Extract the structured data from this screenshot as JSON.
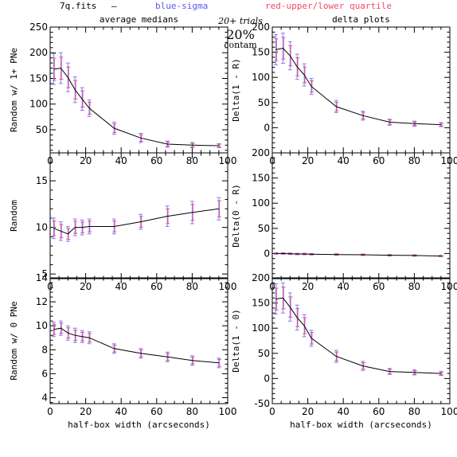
{
  "header": {
    "file": "7q.fits",
    "dash": "—",
    "blue": "blue-sigma",
    "red": "red-upper/lower quartile",
    "trials": "20+ trials",
    "contam_pct": "20%",
    "contam_label": "contam",
    "blue_color": "#5a5af0",
    "red_color": "#f04a6a"
  },
  "colors": {
    "line": "#000000",
    "blue_err": "#7f7fff",
    "red_err": "#e0508a"
  },
  "chart_data": [
    {
      "id": "p1",
      "type": "line",
      "col": 0,
      "row": 0,
      "title": "average medians",
      "ylabel": "Random w/ 1+ PNe",
      "xlabel": "",
      "xlim": [
        0,
        100
      ],
      "ylim": [
        5,
        250
      ],
      "yticks": [
        50,
        100,
        150,
        200,
        250
      ],
      "x": [
        2,
        6,
        10,
        14,
        18,
        22,
        36,
        51,
        66,
        80,
        95
      ],
      "y": [
        168,
        170,
        152,
        128,
        110,
        92,
        53,
        34,
        22,
        20,
        19
      ],
      "err": [
        30,
        30,
        28,
        25,
        22,
        16,
        12,
        9,
        6,
        5,
        4
      ]
    },
    {
      "id": "p2",
      "type": "line",
      "col": 1,
      "row": 0,
      "title": "delta plots",
      "ylabel": "Delta(1 - R)",
      "xlabel": "",
      "xlim": [
        0,
        100
      ],
      "ylim": [
        -50,
        200
      ],
      "yticks": [
        0,
        50,
        100,
        150,
        200
      ],
      "x": [
        2,
        6,
        10,
        14,
        18,
        22,
        36,
        51,
        66,
        80,
        95
      ],
      "y": [
        155,
        158,
        143,
        121,
        105,
        82,
        42,
        24,
        11,
        8,
        6
      ],
      "err": [
        30,
        30,
        28,
        25,
        22,
        16,
        12,
        9,
        6,
        5,
        4
      ]
    },
    {
      "id": "p3",
      "type": "line",
      "col": 0,
      "row": 1,
      "title": "",
      "ylabel": "Random",
      "xlabel": "",
      "xlim": [
        0,
        100
      ],
      "ylim": [
        4.5,
        18
      ],
      "yticks": [
        5,
        10,
        15
      ],
      "x": [
        2,
        6,
        10,
        14,
        18,
        22,
        36,
        51,
        66,
        80,
        95
      ],
      "y": [
        9.9,
        9.6,
        9.3,
        10.0,
        10.0,
        10.1,
        10.1,
        10.6,
        11.2,
        11.6,
        12.0
      ],
      "err": [
        1.1,
        1.0,
        0.8,
        0.9,
        0.8,
        0.8,
        0.8,
        0.8,
        1.1,
        1.2,
        1.2
      ]
    },
    {
      "id": "p4",
      "type": "line",
      "col": 1,
      "row": 1,
      "title": "",
      "ylabel": "Delta(0 - R)",
      "xlabel": "",
      "xlim": [
        0,
        100
      ],
      "ylim": [
        -50,
        200
      ],
      "yticks": [
        0,
        50,
        100,
        150,
        200
      ],
      "x": [
        2,
        6,
        10,
        14,
        18,
        22,
        36,
        51,
        66,
        80,
        95
      ],
      "y": [
        0,
        0,
        -0.5,
        -1,
        -1,
        -1.5,
        -2,
        -2.5,
        -3.5,
        -4,
        -5
      ],
      "err": [
        1.5,
        1.5,
        1.5,
        1.5,
        1.5,
        1.5,
        1.5,
        1.5,
        1.5,
        1.5,
        1.5
      ]
    },
    {
      "id": "p5",
      "type": "line",
      "col": 0,
      "row": 2,
      "title": "",
      "ylabel": "Random w/ 0 PNe",
      "xlabel": "half-box width (arcseconds)",
      "xlim": [
        0,
        100
      ],
      "ylim": [
        3.5,
        14
      ],
      "yticks": [
        4,
        6,
        8,
        10,
        12,
        14
      ],
      "x": [
        2,
        6,
        10,
        14,
        18,
        22,
        36,
        51,
        66,
        80,
        95
      ],
      "y": [
        9.7,
        9.8,
        9.4,
        9.2,
        9.1,
        9.0,
        8.1,
        7.7,
        7.4,
        7.1,
        6.9
      ],
      "err": [
        0.6,
        0.6,
        0.6,
        0.6,
        0.5,
        0.5,
        0.4,
        0.4,
        0.4,
        0.4,
        0.4
      ]
    },
    {
      "id": "p6",
      "type": "line",
      "col": 1,
      "row": 2,
      "title": "",
      "ylabel": "Delta(1 - 0)",
      "xlabel": "half-box width (arcseconds)",
      "xlim": [
        0,
        100
      ],
      "ylim": [
        -50,
        200
      ],
      "yticks": [
        -50,
        0,
        50,
        100,
        150,
        200
      ],
      "x": [
        2,
        6,
        10,
        14,
        18,
        22,
        36,
        51,
        66,
        80,
        95
      ],
      "y": [
        158,
        160,
        142,
        121,
        105,
        80,
        44,
        25,
        14,
        12,
        10
      ],
      "err": [
        30,
        30,
        28,
        25,
        22,
        16,
        12,
        9,
        6,
        5,
        4
      ]
    }
  ]
}
